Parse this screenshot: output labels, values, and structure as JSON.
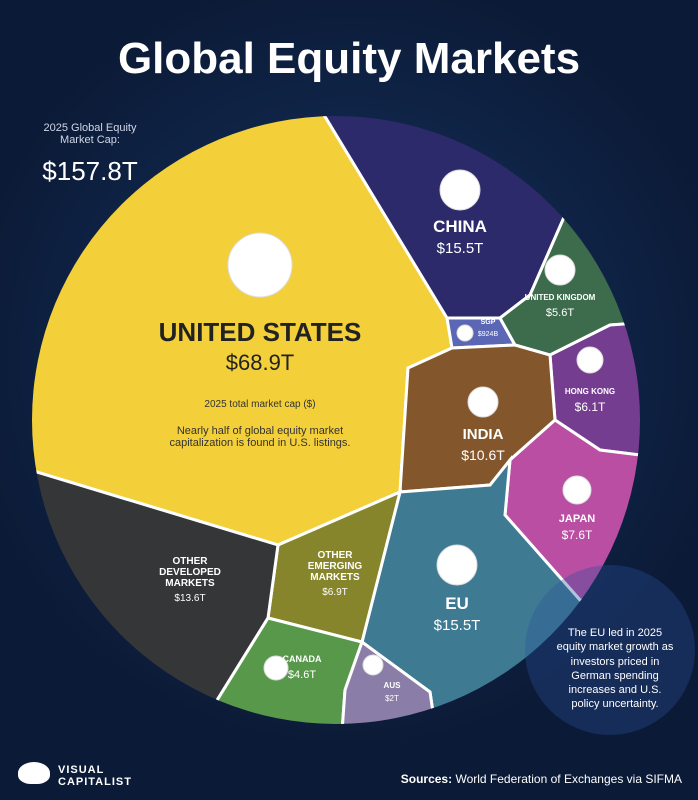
{
  "chart_data": {
    "type": "voronoi",
    "title": "Global Equity Markets",
    "total_label": "2025 Global Equity Market Cap:",
    "total_value": 157.8,
    "total_value_label": "$157.8T",
    "categories": [
      "UNITED STATES",
      "CHINA",
      "SGP",
      "UNITED KINGDOM",
      "HONG KONG",
      "INDIA",
      "JAPAN",
      "EU",
      "OTHER EMERGING MARKETS",
      "OTHER DEVELOPED MARKETS",
      "CANADA",
      "AUS"
    ],
    "values": [
      68.9,
      15.5,
      0.924,
      5.6,
      6.1,
      10.6,
      7.6,
      15.5,
      6.9,
      13.6,
      4.6,
      2
    ],
    "value_labels": [
      "$68.9T",
      "$15.5T",
      "$924B",
      "$5.6T",
      "$6.1T",
      "$10.6T",
      "$7.6T",
      "$15.5T",
      "$6.9T",
      "$13.6T",
      "$4.6T",
      "$2T"
    ],
    "colors": [
      "#f3cf3a",
      "#2c2a6b",
      "#5b67b5",
      "#3d6c4d",
      "#753d90",
      "#83572b",
      "#b94ea3",
      "#3e7b93",
      "#86852b",
      "#353638",
      "#58984b",
      "#8a7ea8"
    ],
    "us_subtitle": "2025 total market cap ($)",
    "us_note": "Nearly half of global equity market capitalization is found in U.S. listings.",
    "eu_note": "The EU led in 2025 equity market growth as investors priced in German spending increases and U.S. policy uncertainty.",
    "brand": "VISUAL CAPITALIST",
    "source_label": "Sources:",
    "source": "World Federation of Exchanges via SIFMA"
  }
}
